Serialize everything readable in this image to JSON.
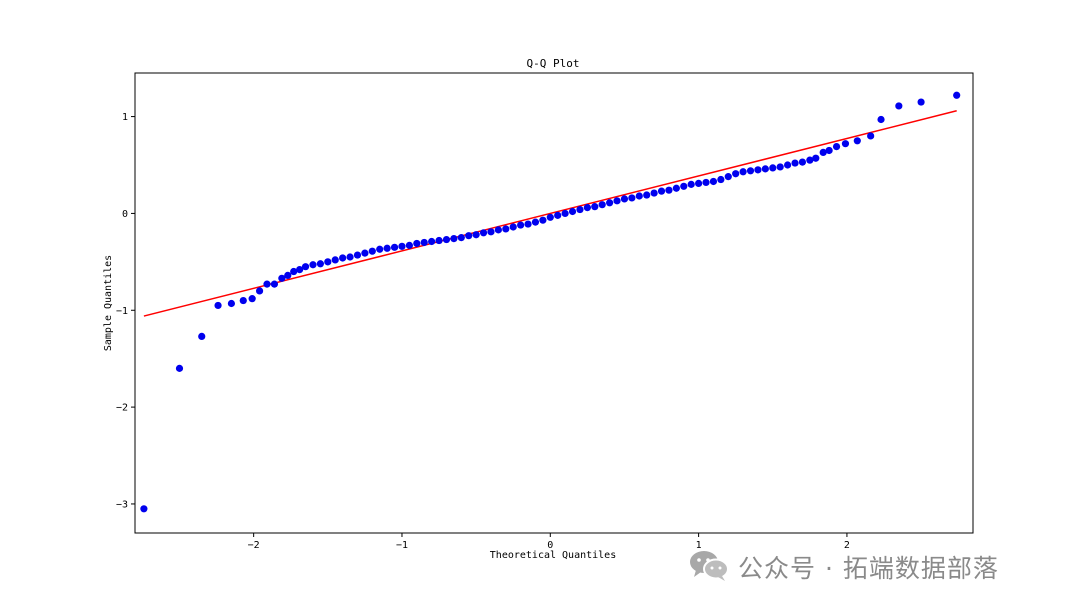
{
  "chart_data": {
    "type": "scatter",
    "title": "Q-Q Plot",
    "xlabel": "Theoretical Quantiles",
    "ylabel": "Sample Quantiles",
    "xlim": [
      -2.8,
      2.85
    ],
    "ylim": [
      -3.3,
      1.45
    ],
    "xticks": [
      -2,
      -1,
      0,
      1,
      2
    ],
    "yticks": [
      -3,
      -2,
      -1,
      0,
      1
    ],
    "grid": false,
    "point_color": "#0000ee",
    "line_color": "#ff0000",
    "series": [
      {
        "type": "scatter",
        "points": [
          [
            -2.74,
            -3.05
          ],
          [
            -2.5,
            -1.6
          ],
          [
            -2.35,
            -1.27
          ],
          [
            -2.24,
            -0.95
          ],
          [
            -2.15,
            -0.93
          ],
          [
            -2.07,
            -0.9
          ],
          [
            -2.01,
            -0.88
          ],
          [
            -1.96,
            -0.8
          ],
          [
            -1.91,
            -0.73
          ],
          [
            -1.86,
            -0.73
          ],
          [
            -1.81,
            -0.67
          ],
          [
            -1.77,
            -0.64
          ],
          [
            -1.73,
            -0.6
          ],
          [
            -1.69,
            -0.58
          ],
          [
            -1.65,
            -0.55
          ],
          [
            -1.6,
            -0.53
          ],
          [
            -1.55,
            -0.52
          ],
          [
            -1.5,
            -0.5
          ],
          [
            -1.45,
            -0.48
          ],
          [
            -1.4,
            -0.46
          ],
          [
            -1.35,
            -0.45
          ],
          [
            -1.3,
            -0.43
          ],
          [
            -1.25,
            -0.41
          ],
          [
            -1.2,
            -0.39
          ],
          [
            -1.15,
            -0.37
          ],
          [
            -1.1,
            -0.36
          ],
          [
            -1.05,
            -0.35
          ],
          [
            -1.0,
            -0.34
          ],
          [
            -0.95,
            -0.33
          ],
          [
            -0.9,
            -0.31
          ],
          [
            -0.85,
            -0.3
          ],
          [
            -0.8,
            -0.29
          ],
          [
            -0.75,
            -0.28
          ],
          [
            -0.7,
            -0.27
          ],
          [
            -0.65,
            -0.26
          ],
          [
            -0.6,
            -0.25
          ],
          [
            -0.55,
            -0.23
          ],
          [
            -0.5,
            -0.22
          ],
          [
            -0.45,
            -0.2
          ],
          [
            -0.4,
            -0.19
          ],
          [
            -0.35,
            -0.17
          ],
          [
            -0.3,
            -0.16
          ],
          [
            -0.25,
            -0.14
          ],
          [
            -0.2,
            -0.12
          ],
          [
            -0.15,
            -0.11
          ],
          [
            -0.1,
            -0.09
          ],
          [
            -0.05,
            -0.07
          ],
          [
            0.0,
            -0.04
          ],
          [
            0.05,
            -0.02
          ],
          [
            0.1,
            0.0
          ],
          [
            0.15,
            0.02
          ],
          [
            0.2,
            0.04
          ],
          [
            0.25,
            0.06
          ],
          [
            0.3,
            0.07
          ],
          [
            0.35,
            0.09
          ],
          [
            0.4,
            0.11
          ],
          [
            0.45,
            0.13
          ],
          [
            0.5,
            0.15
          ],
          [
            0.55,
            0.16
          ],
          [
            0.6,
            0.18
          ],
          [
            0.65,
            0.19
          ],
          [
            0.7,
            0.21
          ],
          [
            0.75,
            0.23
          ],
          [
            0.8,
            0.24
          ],
          [
            0.85,
            0.26
          ],
          [
            0.9,
            0.28
          ],
          [
            0.95,
            0.3
          ],
          [
            1.0,
            0.31
          ],
          [
            1.05,
            0.32
          ],
          [
            1.1,
            0.33
          ],
          [
            1.15,
            0.35
          ],
          [
            1.2,
            0.38
          ],
          [
            1.25,
            0.41
          ],
          [
            1.3,
            0.43
          ],
          [
            1.35,
            0.44
          ],
          [
            1.4,
            0.45
          ],
          [
            1.45,
            0.46
          ],
          [
            1.5,
            0.47
          ],
          [
            1.55,
            0.48
          ],
          [
            1.6,
            0.5
          ],
          [
            1.65,
            0.52
          ],
          [
            1.7,
            0.53
          ],
          [
            1.75,
            0.55
          ],
          [
            1.79,
            0.57
          ],
          [
            1.84,
            0.63
          ],
          [
            1.88,
            0.65
          ],
          [
            1.93,
            0.69
          ],
          [
            1.99,
            0.72
          ],
          [
            2.07,
            0.75
          ],
          [
            2.16,
            0.8
          ],
          [
            2.23,
            0.97
          ],
          [
            2.35,
            1.11
          ],
          [
            2.5,
            1.15
          ],
          [
            2.74,
            1.22
          ]
        ]
      },
      {
        "type": "line",
        "points": [
          [
            -2.74,
            -1.06
          ],
          [
            2.74,
            1.06
          ]
        ]
      }
    ]
  },
  "watermark": {
    "icon": "wechat-icon",
    "text": "公众号 · 拓端数据部落"
  }
}
